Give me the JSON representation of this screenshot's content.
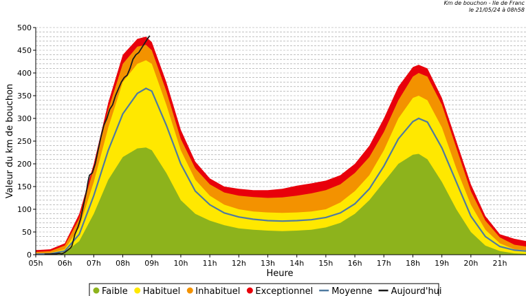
{
  "header": {
    "line1": "Km de bouchon - Ile de Franc",
    "line2": "le 21/05/24 à 08h58"
  },
  "chart_data": {
    "type": "area",
    "title": "",
    "xlabel": "Heure",
    "ylabel": "Valeur du  km de bouchon",
    "ylim": [
      0,
      500
    ],
    "xlim": [
      5,
      21.9
    ],
    "y_ticks": [
      0,
      50,
      100,
      150,
      200,
      250,
      300,
      350,
      400,
      450,
      500
    ],
    "x_ticks": [
      {
        "value": 5,
        "label": "05h"
      },
      {
        "value": 6,
        "label": "06h"
      },
      {
        "value": 7,
        "label": "07h"
      },
      {
        "value": 8,
        "label": "08h"
      },
      {
        "value": 9,
        "label": "09h"
      },
      {
        "value": 10,
        "label": "10h"
      },
      {
        "value": 11,
        "label": "11h"
      },
      {
        "value": 12,
        "label": "12h"
      },
      {
        "value": 13,
        "label": "13h"
      },
      {
        "value": 14,
        "label": "14h"
      },
      {
        "value": 15,
        "label": "15h"
      },
      {
        "value": 16,
        "label": "16h"
      },
      {
        "value": 17,
        "label": "17h"
      },
      {
        "value": 18,
        "label": "18h"
      },
      {
        "value": 19,
        "label": "19h"
      },
      {
        "value": 20,
        "label": "20h"
      },
      {
        "value": 21,
        "label": "21h"
      }
    ],
    "grid": true,
    "legend_position": "bottom",
    "x": [
      5.0,
      5.5,
      6.0,
      6.5,
      7.0,
      7.5,
      8.0,
      8.5,
      8.8,
      9.0,
      9.5,
      10.0,
      10.5,
      11.0,
      11.5,
      12.0,
      12.5,
      13.0,
      13.5,
      14.0,
      14.5,
      15.0,
      15.5,
      16.0,
      16.5,
      17.0,
      17.5,
      18.0,
      18.2,
      18.5,
      19.0,
      19.5,
      20.0,
      20.5,
      21.0,
      21.5,
      21.9
    ],
    "series": [
      {
        "name": "Faible",
        "color": "#8db31c",
        "values": [
          0,
          1,
          5,
          30,
          90,
          165,
          215,
          234,
          236,
          230,
          180,
          120,
          90,
          75,
          65,
          58,
          55,
          53,
          52,
          53,
          55,
          60,
          70,
          90,
          120,
          160,
          200,
          220,
          222,
          210,
          160,
          100,
          50,
          20,
          8,
          3,
          2
        ]
      },
      {
        "name": "Habituel",
        "color": "#ffe800",
        "values": [
          2,
          4,
          12,
          60,
          160,
          280,
          380,
          420,
          428,
          420,
          330,
          230,
          165,
          130,
          110,
          100,
          95,
          93,
          92,
          93,
          95,
          100,
          115,
          140,
          175,
          230,
          300,
          345,
          350,
          340,
          280,
          190,
          110,
          55,
          25,
          12,
          10
        ]
      },
      {
        "name": "Inhabituel",
        "color": "#f39200",
        "values": [
          6,
          8,
          20,
          80,
          190,
          320,
          420,
          458,
          462,
          450,
          360,
          255,
          190,
          155,
          137,
          130,
          127,
          125,
          126,
          130,
          135,
          142,
          155,
          180,
          215,
          270,
          340,
          392,
          400,
          392,
          330,
          235,
          140,
          75,
          38,
          22,
          18
        ]
      },
      {
        "name": "Exceptionnel",
        "color": "#e8000b",
        "values": [
          10,
          12,
          25,
          90,
          200,
          335,
          440,
          475,
          480,
          468,
          380,
          275,
          205,
          168,
          150,
          145,
          142,
          142,
          145,
          152,
          157,
          163,
          175,
          200,
          240,
          300,
          370,
          413,
          418,
          410,
          345,
          250,
          155,
          85,
          45,
          35,
          30
        ]
      },
      {
        "name": "Moyenne",
        "color": "#4f7aa0",
        "values": [
          1,
          2,
          8,
          45,
          130,
          230,
          310,
          355,
          366,
          360,
          285,
          200,
          140,
          110,
          92,
          83,
          78,
          75,
          74,
          75,
          77,
          82,
          92,
          112,
          145,
          195,
          255,
          293,
          300,
          292,
          235,
          160,
          85,
          40,
          18,
          10,
          8
        ]
      },
      {
        "name": "Aujourd'hui",
        "color": "#1a1a1a",
        "values": [
          1,
          1.5,
          2,
          3,
          2,
          5,
          10,
          15,
          20,
          45,
          60,
          70,
          80,
          110,
          140,
          160,
          175,
          180,
          200,
          230,
          260,
          285,
          300,
          320,
          330,
          350,
          365,
          380,
          390,
          395,
          410,
          430,
          440,
          445,
          455,
          465,
          470,
          477,
          482
        ],
        "x": [
          5.3,
          5.5,
          5.7,
          5.8,
          5.9,
          6.0,
          6.1,
          6.2,
          6.25,
          6.35,
          6.45,
          6.5,
          6.55,
          6.65,
          6.75,
          6.8,
          6.85,
          6.95,
          7.05,
          7.15,
          7.25,
          7.35,
          7.45,
          7.55,
          7.65,
          7.75,
          7.85,
          7.95,
          8.05,
          8.15,
          8.25,
          8.35,
          8.45,
          8.55,
          8.65,
          8.75,
          8.8,
          8.87,
          8.93
        ]
      }
    ]
  }
}
